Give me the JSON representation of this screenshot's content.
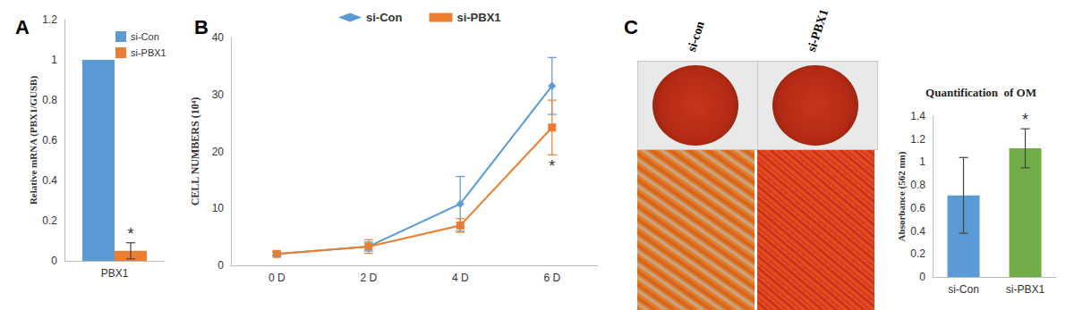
{
  "chart_data": [
    {
      "panel": "A",
      "type": "bar",
      "categories": [
        "PBX1"
      ],
      "series": [
        {
          "name": "si-Con",
          "color": "#5b9bd5",
          "values": [
            1
          ]
        },
        {
          "name": "si-PBX1",
          "color": "#ed7d31",
          "values": [
            0.05
          ],
          "errors": [
            0.04
          ]
        }
      ],
      "y_label": "Relative mRNA (PBX1/GUSB)",
      "ylim": [
        0,
        1.2
      ],
      "yticks": [
        0,
        0.2,
        0.4,
        0.6,
        0.8,
        1,
        1.2
      ],
      "annotations": [
        {
          "text": "*",
          "series": "si-PBX1",
          "category": "PBX1"
        }
      ],
      "legend": "upper right",
      "grid": false
    },
    {
      "panel": "B",
      "type": "line",
      "categories": [
        "0 D",
        "2 D",
        "4 D",
        "6 D"
      ],
      "series": [
        {
          "name": "si-Con",
          "color": "#5b9bd5",
          "marker": "diamond",
          "values": [
            2,
            3.3,
            10.8,
            31.5
          ],
          "errors": [
            0.3,
            0.8,
            4.8,
            5
          ]
        },
        {
          "name": "si-PBX1",
          "color": "#ed7d31",
          "marker": "square",
          "values": [
            2,
            3.3,
            7,
            24.2
          ],
          "errors": [
            0.3,
            1.2,
            1.2,
            4.8
          ]
        }
      ],
      "y_label": "CELL NUMBERS (10⁴)",
      "ylim": [
        0,
        40
      ],
      "yticks": [
        0,
        10,
        20,
        30,
        40
      ],
      "annotations": [
        {
          "text": "*",
          "series": "si-PBX1",
          "category": "6 D"
        }
      ],
      "legend": "upper center",
      "grid": false
    },
    {
      "panel": "C",
      "type": "bar",
      "title": "Quantification  of OM",
      "categories": [
        "si-Con",
        "si-PBX1"
      ],
      "series": [
        {
          "name": "OM",
          "colors": [
            "#5b9bd5",
            "#70ad47"
          ],
          "values": [
            0.71,
            1.12
          ],
          "errors": [
            0.33,
            0.17
          ]
        }
      ],
      "y_label": "Absorbance (562 nm)",
      "ylim": [
        0,
        1.4
      ],
      "yticks": [
        0,
        0.2,
        0.4,
        0.6,
        0.8,
        1,
        1.2,
        1.4
      ],
      "annotations": [
        {
          "text": "*",
          "series": "OM",
          "category": "si-PBX1"
        }
      ],
      "grid": false
    }
  ],
  "images": {
    "labels": [
      "si-con",
      "si-PBX1"
    ]
  }
}
